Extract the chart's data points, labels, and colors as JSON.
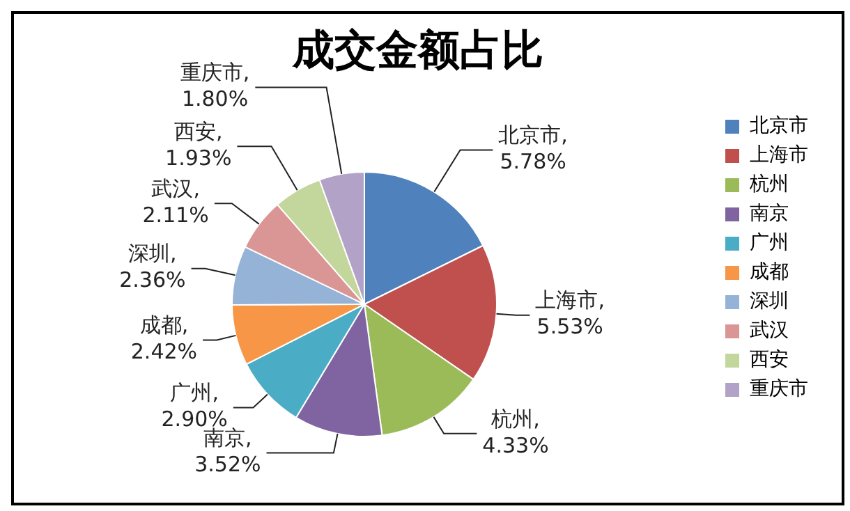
{
  "chart_data": {
    "type": "pie",
    "title": "成交金额占比",
    "categories": [
      "北京市",
      "上海市",
      "杭州",
      "南京",
      "广州",
      "成都",
      "深圳",
      "武汉",
      "西安",
      "重庆市"
    ],
    "values": [
      5.78,
      5.53,
      4.33,
      3.52,
      2.9,
      2.42,
      2.36,
      2.11,
      1.93,
      1.8
    ],
    "value_labels": [
      "北京市,\n5.78%",
      "上海市,\n5.53%",
      "杭州,\n4.33%",
      "南京,\n3.52%",
      "广州,\n2.90%",
      "成都,\n2.42%",
      "深圳,\n2.36%",
      "武汉,\n2.11%",
      "西安,\n1.93%",
      "重庆市,\n1.80%"
    ],
    "colors": [
      "#4f81bd",
      "#c0504d",
      "#9bbb59",
      "#8064a2",
      "#4bacc6",
      "#f79646",
      "#95b3d7",
      "#d99694",
      "#c3d69b",
      "#b3a2c7"
    ],
    "legend": "right"
  }
}
